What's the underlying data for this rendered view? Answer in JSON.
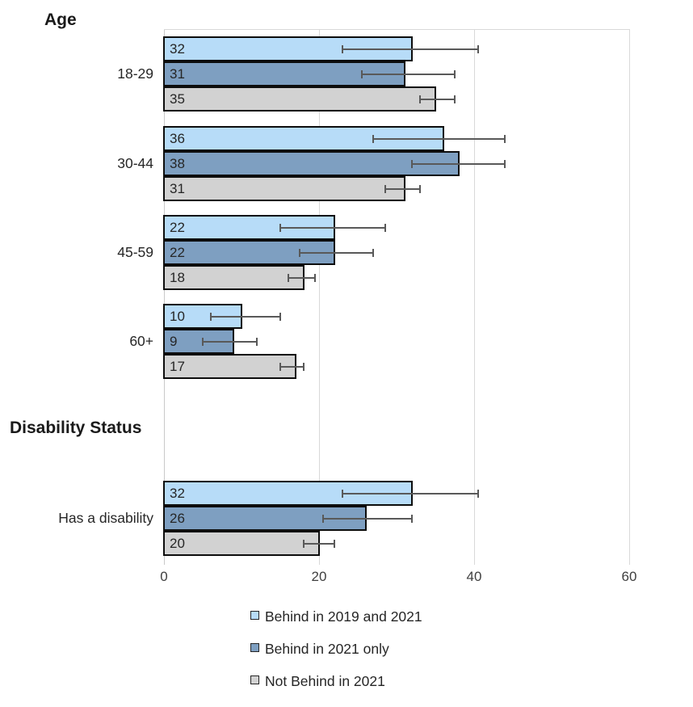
{
  "page": {
    "background": "#ffffff"
  },
  "sections": [
    {
      "title": "Age"
    },
    {
      "title": "Disability Status"
    }
  ],
  "legend": {
    "items": [
      {
        "label": "Behind in 2019 and 2021",
        "color": "#B7DCF8"
      },
      {
        "label": "Behind in 2021 only",
        "color": "#7E9FC1"
      },
      {
        "label": "Not Behind in 2021",
        "color": "#D2D2D2"
      }
    ]
  },
  "colors": {
    "bar_border": "#0d0d0d",
    "error_bar": "#595959",
    "gridline": "#d9d9d9",
    "text": "#262626"
  },
  "chart_data": {
    "type": "bar",
    "orientation": "horizontal",
    "grid": true,
    "legend_position": "bottom",
    "x_axis": {
      "ticks": [
        0,
        20,
        40,
        60
      ],
      "range": [
        0,
        64
      ]
    },
    "series_names": [
      "Behind in 2019 and 2021",
      "Behind in 2021 only",
      "Not Behind in 2021"
    ],
    "error_bars": "horizontal confidence intervals with end caps",
    "groups": [
      {
        "section": "Age",
        "category": "18-29",
        "values": [
          32,
          31,
          35
        ],
        "ci_low": [
          23,
          25.5,
          33
        ],
        "ci_high": [
          40.5,
          37.5,
          37.5
        ]
      },
      {
        "section": "Age",
        "category": "30-44",
        "values": [
          36,
          38,
          31
        ],
        "ci_low": [
          27,
          32,
          28.5
        ],
        "ci_high": [
          44,
          44,
          33
        ]
      },
      {
        "section": "Age",
        "category": "45-59",
        "values": [
          22,
          22,
          18
        ],
        "ci_low": [
          15,
          17.5,
          16
        ],
        "ci_high": [
          28.5,
          27,
          19.5
        ]
      },
      {
        "section": "Age",
        "category": "60+",
        "values": [
          10,
          9,
          17
        ],
        "ci_low": [
          6,
          5,
          15
        ],
        "ci_high": [
          15,
          12,
          18
        ]
      },
      {
        "section": "Disability Status",
        "category": "Has a disability",
        "values": [
          32,
          26,
          20
        ],
        "ci_low": [
          23,
          20.5,
          18
        ],
        "ci_high": [
          40.5,
          32,
          22
        ]
      }
    ]
  }
}
